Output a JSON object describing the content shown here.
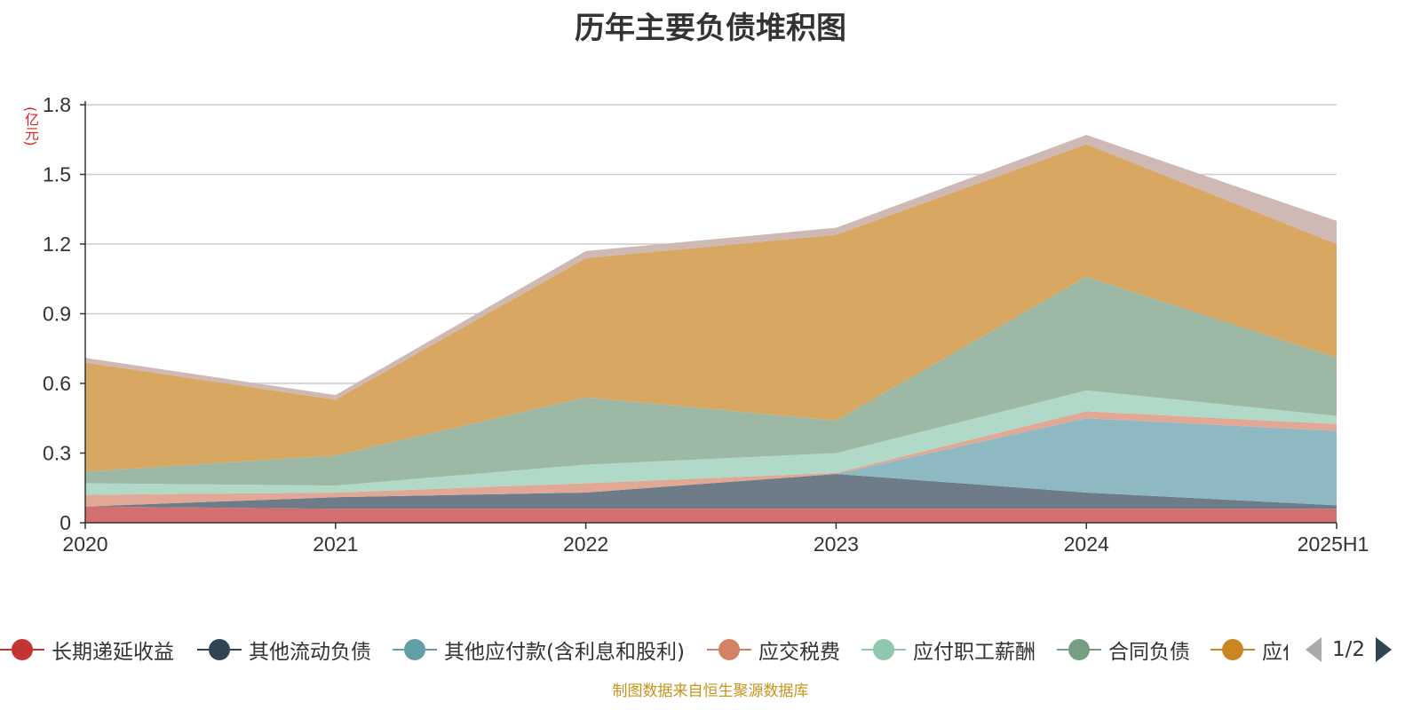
{
  "title": "历年主要负债堆积图",
  "source_note": "制图数据来自恒生聚源数据库",
  "legend_pager": "1/2",
  "chart_data": {
    "type": "area",
    "stacked": true,
    "unit": "(亿元)",
    "categories": [
      "2020",
      "2021",
      "2022",
      "2023",
      "2024",
      "2025H1"
    ],
    "y_ticks": [
      "0",
      "0.3",
      "0.6",
      "0.9",
      "1.2",
      "1.5",
      "1.8"
    ],
    "ylim": [
      0,
      1.8
    ],
    "grid": true,
    "legend_position": "bottom",
    "series": [
      {
        "name": "长期递延收益",
        "color": "#c23531",
        "fill": "#d46f6f",
        "values": [
          0.07,
          0.06,
          0.06,
          0.06,
          0.06,
          0.06
        ]
      },
      {
        "name": "其他流动负债",
        "color": "#2f4554",
        "fill": "#6e7c8a",
        "values": [
          0.0,
          0.05,
          0.07,
          0.15,
          0.07,
          0.015
        ]
      },
      {
        "name": "其他应付款(含利息和股利)",
        "color": "#61a0a8",
        "fill": "#8fb9c2",
        "values": [
          0.0,
          0.0,
          0.0,
          0.0,
          0.32,
          0.32
        ]
      },
      {
        "name": "应交税费",
        "color": "#d48265",
        "fill": "#e1a896",
        "values": [
          0.05,
          0.02,
          0.04,
          0.005,
          0.03,
          0.03
        ]
      },
      {
        "name": "应付职工薪酬",
        "color": "#91c7ae",
        "fill": "#b1d9c7",
        "values": [
          0.05,
          0.03,
          0.08,
          0.085,
          0.09,
          0.035
        ]
      },
      {
        "name": "合同负债",
        "color": "#749f83",
        "fill": "#9db9a6",
        "values": [
          0.05,
          0.13,
          0.29,
          0.14,
          0.49,
          0.25
        ]
      },
      {
        "name": "应付账款",
        "color": "#ca8622",
        "fill": "#d8a862",
        "values": [
          0.47,
          0.24,
          0.6,
          0.8,
          0.57,
          0.49
        ]
      },
      {
        "name": "",
        "color": "#bda29a",
        "fill": "#ceb9b5",
        "values": [
          0.02,
          0.02,
          0.03,
          0.03,
          0.04,
          0.1
        ]
      }
    ],
    "legend_visible": [
      "长期递延收益",
      "其他流动负债",
      "其他应付款(含利息和股利)",
      "应交税费",
      "应付职工薪酬",
      "合同负债",
      "应付账款"
    ]
  }
}
